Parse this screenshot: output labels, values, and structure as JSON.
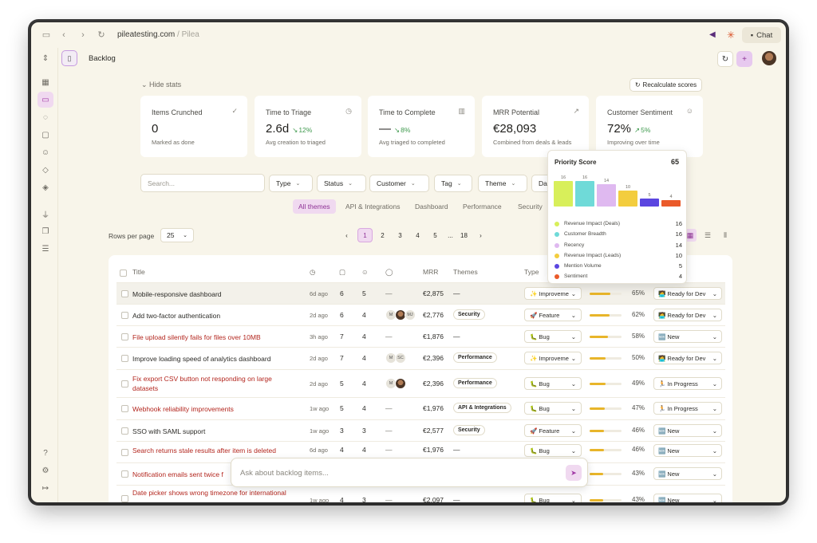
{
  "browser": {
    "url_host": "pileatesting.com",
    "url_path": " / Pilea",
    "chat_label": "Chat"
  },
  "header": {
    "title": "Backlog"
  },
  "stats": {
    "hide_label": "Hide stats",
    "recalc_label": "Recalculate scores",
    "cards": [
      {
        "label": "Items Crunched",
        "value": "0",
        "delta": "",
        "sub": "Marked as done",
        "icon": "check-circle-icon"
      },
      {
        "label": "Time to Triage",
        "value": "2.6d",
        "delta": "12%",
        "sub": "Avg creation to triaged",
        "icon": "clock-icon"
      },
      {
        "label": "Time to Complete",
        "value": "—",
        "delta": "8%",
        "sub": "Avg triaged to completed",
        "icon": "bar-chart-icon"
      },
      {
        "label": "MRR Potential",
        "value": "€28,093",
        "delta": "",
        "sub": "Combined from deals & leads",
        "icon": "trend-up-icon"
      },
      {
        "label": "Customer Sentiment",
        "value": "72%",
        "delta": "5%",
        "sub": "Improving over time",
        "icon": "smile-icon"
      }
    ]
  },
  "filters": {
    "search_placeholder": "Search...",
    "buttons": [
      "Type",
      "Status",
      "Customer",
      "Tag",
      "Theme",
      "Da"
    ]
  },
  "tabs": [
    "All themes",
    "API & Integrations",
    "Dashboard",
    "Performance",
    "Security"
  ],
  "pagination": {
    "rows_label": "Rows per page",
    "rows_value": "25",
    "pages": [
      "1",
      "2",
      "3",
      "4",
      "5",
      "...",
      "18"
    ]
  },
  "table": {
    "headers": {
      "title": "Title",
      "mrr": "MRR",
      "themes": "Themes",
      "type": "Type"
    },
    "rows": [
      {
        "title": "Mobile-responsive dashboard",
        "red": false,
        "age": "6d ago",
        "n1": "6",
        "n2": "5",
        "avatars": [],
        "mrr": "€2,875",
        "theme": "—",
        "type": "✨ Improveme",
        "score": 0.65,
        "score_label": "65%",
        "status": "🧑‍💻 Ready for Dev"
      },
      {
        "title": "Add two-factor authentication",
        "red": false,
        "age": "2d ago",
        "n1": "6",
        "n2": "4",
        "avatars": [
          "M",
          "photo",
          "MJ"
        ],
        "mrr": "€2,776",
        "theme": "Security",
        "type": "🚀 Feature",
        "score": 0.62,
        "score_label": "62%",
        "status": "🧑‍💻 Ready for Dev"
      },
      {
        "title": "File upload silently fails for files over 10MB",
        "red": true,
        "age": "3h ago",
        "n1": "7",
        "n2": "4",
        "avatars": [],
        "mrr": "€1,876",
        "theme": "—",
        "type": "🐛 Bug",
        "score": 0.58,
        "score_label": "58%",
        "status": "🆕 New"
      },
      {
        "title": "Improve loading speed of analytics dashboard",
        "red": false,
        "age": "2d ago",
        "n1": "7",
        "n2": "4",
        "avatars": [
          "M",
          "SC"
        ],
        "mrr": "€2,396",
        "theme": "Performance",
        "type": "✨ Improveme",
        "score": 0.5,
        "score_label": "50%",
        "status": "🧑‍💻 Ready for Dev"
      },
      {
        "title": "Fix export CSV button not responding on large datasets",
        "red": true,
        "age": "2d ago",
        "n1": "5",
        "n2": "4",
        "avatars": [
          "M",
          "photo"
        ],
        "mrr": "€2,396",
        "theme": "Performance",
        "type": "🐛 Bug",
        "score": 0.49,
        "score_label": "49%",
        "status": "🏃 In Progress"
      },
      {
        "title": "Webhook reliability improvements",
        "red": true,
        "age": "1w ago",
        "n1": "5",
        "n2": "4",
        "avatars": [],
        "mrr": "€1,976",
        "theme": "API & Integrations",
        "type": "🐛 Bug",
        "score": 0.47,
        "score_label": "47%",
        "status": "🏃 In Progress"
      },
      {
        "title": "SSO with SAML support",
        "red": false,
        "age": "1w ago",
        "n1": "3",
        "n2": "3",
        "avatars": [],
        "mrr": "€2,577",
        "theme": "Security",
        "type": "🚀 Feature",
        "score": 0.46,
        "score_label": "46%",
        "status": "🆕 New"
      },
      {
        "title": "Search returns stale results after item is deleted",
        "red": true,
        "age": "6d ago",
        "n1": "4",
        "n2": "4",
        "avatars": [],
        "mrr": "€1,976",
        "theme": "—",
        "type": "🐛 Bug",
        "score": 0.46,
        "score_label": "46%",
        "status": "🆕 New"
      },
      {
        "title": "Notification emails sent twice f",
        "red": true,
        "age": "",
        "n1": "",
        "n2": "",
        "avatars": [],
        "mrr": "",
        "theme": "",
        "type": "🐛 Bug",
        "score": 0.43,
        "score_label": "43%",
        "status": "🆕 New"
      },
      {
        "title": "Date picker shows wrong timezone for international",
        "red": true,
        "age": "1w ago",
        "n1": "4",
        "n2": "3",
        "avatars": [],
        "mrr": "€2,097",
        "theme": "—",
        "type": "🐛 Bug",
        "score": 0.43,
        "score_label": "43%",
        "status": "🆕 New"
      }
    ]
  },
  "priority_popover": {
    "title": "Priority Score",
    "score": "65",
    "items": [
      {
        "label": "Revenue Impact (Deals)",
        "value": "16",
        "color": "#d8ef5a"
      },
      {
        "label": "Customer Breadth",
        "value": "16",
        "color": "#6fdad8"
      },
      {
        "label": "Recency",
        "value": "14",
        "color": "#dfb9f0"
      },
      {
        "label": "Revenue Impact (Leads)",
        "value": "10",
        "color": "#f3cd3e"
      },
      {
        "label": "Mention Volume",
        "value": "5",
        "color": "#5b46e0"
      },
      {
        "label": "Sentiment",
        "value": "4",
        "color": "#ea5a2a"
      }
    ]
  },
  "chat": {
    "placeholder": "Ask about backlog items..."
  }
}
